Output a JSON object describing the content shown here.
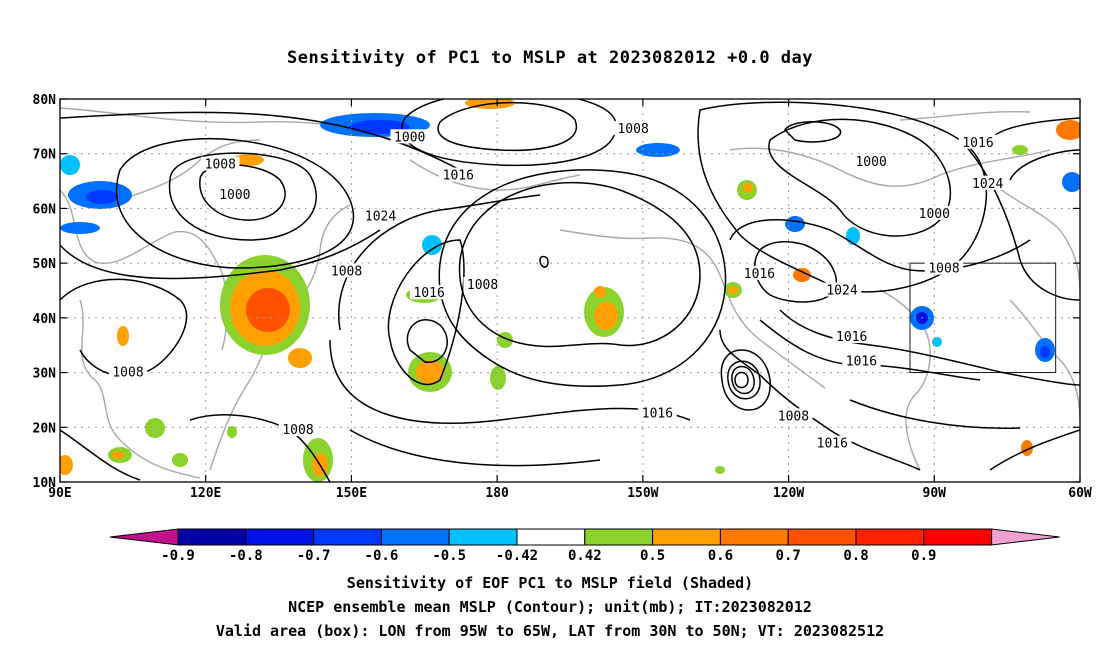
{
  "title": "Sensitivity of PC1 to MSLP at 2023082012 +0.0 day",
  "lat_labels": [
    "80N",
    "70N",
    "60N",
    "50N",
    "40N",
    "30N",
    "20N",
    "10N"
  ],
  "lon_labels": [
    "90E",
    "120E",
    "150E",
    "180",
    "150W",
    "120W",
    "90W",
    "60W"
  ],
  "contour_labels": [
    {
      "text": "1000",
      "lon": 162,
      "lat": 73
    },
    {
      "text": "1008",
      "lon": 208,
      "lat": 74.5
    },
    {
      "text": "1008",
      "lon": 123,
      "lat": 68
    },
    {
      "text": "1000",
      "lon": 126,
      "lat": 62.5
    },
    {
      "text": "1016",
      "lon": 172,
      "lat": 66
    },
    {
      "text": "1024",
      "lon": 156,
      "lat": 58.5
    },
    {
      "text": "1000",
      "lon": 257,
      "lat": 68.5
    },
    {
      "text": "1016",
      "lon": 279,
      "lat": 72
    },
    {
      "text": "1024",
      "lon": 281,
      "lat": 64.5
    },
    {
      "text": "1000",
      "lon": 270,
      "lat": 59
    },
    {
      "text": "1008",
      "lon": 149,
      "lat": 48.5
    },
    {
      "text": "1008",
      "lon": 177,
      "lat": 46
    },
    {
      "text": "1016",
      "lon": 166,
      "lat": 44.5
    },
    {
      "text": "1016",
      "lon": 234,
      "lat": 48
    },
    {
      "text": "1008",
      "lon": 272,
      "lat": 49
    },
    {
      "text": "1024",
      "lon": 251,
      "lat": 45
    },
    {
      "text": "1016",
      "lon": 253,
      "lat": 36.5
    },
    {
      "text": "1016",
      "lon": 255,
      "lat": 32
    },
    {
      "text": "1008",
      "lon": 104,
      "lat": 30
    },
    {
      "text": "1016",
      "lon": 213,
      "lat": 22.5
    },
    {
      "text": "1008",
      "lon": 139,
      "lat": 19.5
    },
    {
      "text": "1008",
      "lon": 241,
      "lat": 22
    },
    {
      "text": "1016",
      "lon": 249,
      "lat": 17
    }
  ],
  "colorbar": {
    "colors": [
      "#c0108c",
      "#0000a8",
      "#0010e8",
      "#0038ff",
      "#0070ff",
      "#00c0ff",
      "#ffffff",
      "#8cd22c",
      "#ffa000",
      "#ff7800",
      "#ff5000",
      "#ff2000",
      "#ff0000",
      "#f4a0d0"
    ],
    "labels": [
      "-0.9",
      "-0.8",
      "-0.7",
      "-0.6",
      "-0.5",
      "-0.42",
      "0.42",
      "0.5",
      "0.6",
      "0.7",
      "0.8",
      "0.9"
    ]
  },
  "caption_lines": [
    "Sensitivity of EOF PC1 to MSLP field (Shaded)",
    "NCEP ensemble mean MSLP (Contour); unit(mb); IT:2023082012",
    "Valid area (box): LON from 95W to 65W, LAT from 30N to 50N; VT: 2023082512"
  ],
  "valid_box": {
    "lon_min": -95,
    "lon_max": -65,
    "lat_min": 30,
    "lat_max": 50
  }
}
